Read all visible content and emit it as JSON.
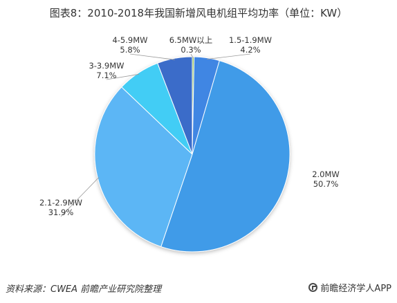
{
  "title": "图表8：2010-2018年我国新增风电机组平均功率（单位：KW）",
  "chart_data": {
    "type": "pie",
    "title": "图表8：2010-2018年我国新增风电机组平均功率（单位：KW）",
    "slices": [
      {
        "label": "6.5MW以上",
        "value": 0.3,
        "value_label": "0.3%",
        "color": "#8fbc5a"
      },
      {
        "label": "1.5-1.9MW",
        "value": 4.2,
        "value_label": "4.2%",
        "color": "#3f86e3"
      },
      {
        "label": "2.0MW",
        "value": 50.7,
        "value_label": "50.7%",
        "color": "#3f9be8"
      },
      {
        "label": "2.1-2.9MW",
        "value": 31.9,
        "value_label": "31.9%",
        "color": "#5cb6f5"
      },
      {
        "label": "3-3.9MW",
        "value": 7.1,
        "value_label": "7.1%",
        "color": "#43cdf5"
      },
      {
        "label": "4-5.9MW",
        "value": 5.8,
        "value_label": "5.8%",
        "color": "#3b6cc9"
      }
    ]
  },
  "footer": {
    "source": "资料来源：CWEA  前瞻产业研究院整理",
    "brand": "前瞻经济学人APP"
  }
}
